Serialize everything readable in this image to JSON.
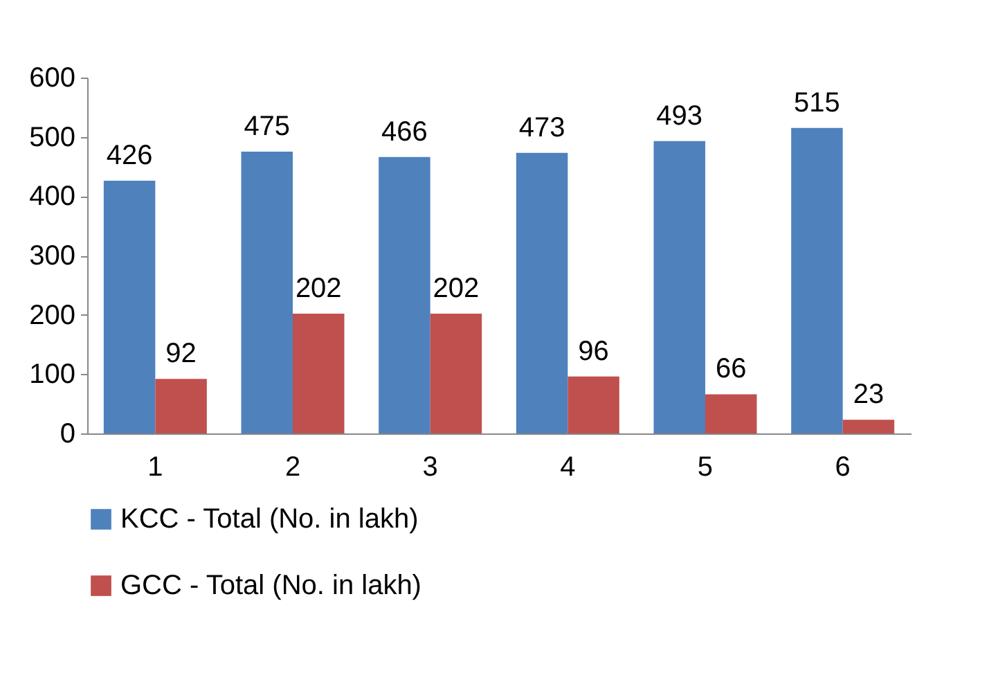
{
  "chart_data": {
    "type": "bar",
    "categories": [
      "1",
      "2",
      "3",
      "4",
      "5",
      "6"
    ],
    "series": [
      {
        "name": "KCC - Total (No. in lakh)",
        "color": "#4f81bd",
        "values": [
          426,
          475,
          466,
          473,
          493,
          515
        ]
      },
      {
        "name": "GCC - Total (No. in lakh)",
        "color": "#c0504d",
        "values": [
          92,
          202,
          202,
          96,
          66,
          23
        ]
      }
    ],
    "ylim": [
      0,
      600
    ],
    "yticks": [
      0,
      100,
      200,
      300,
      400,
      500,
      600
    ],
    "grid": false,
    "legend": "bottom",
    "data_labels": true
  }
}
